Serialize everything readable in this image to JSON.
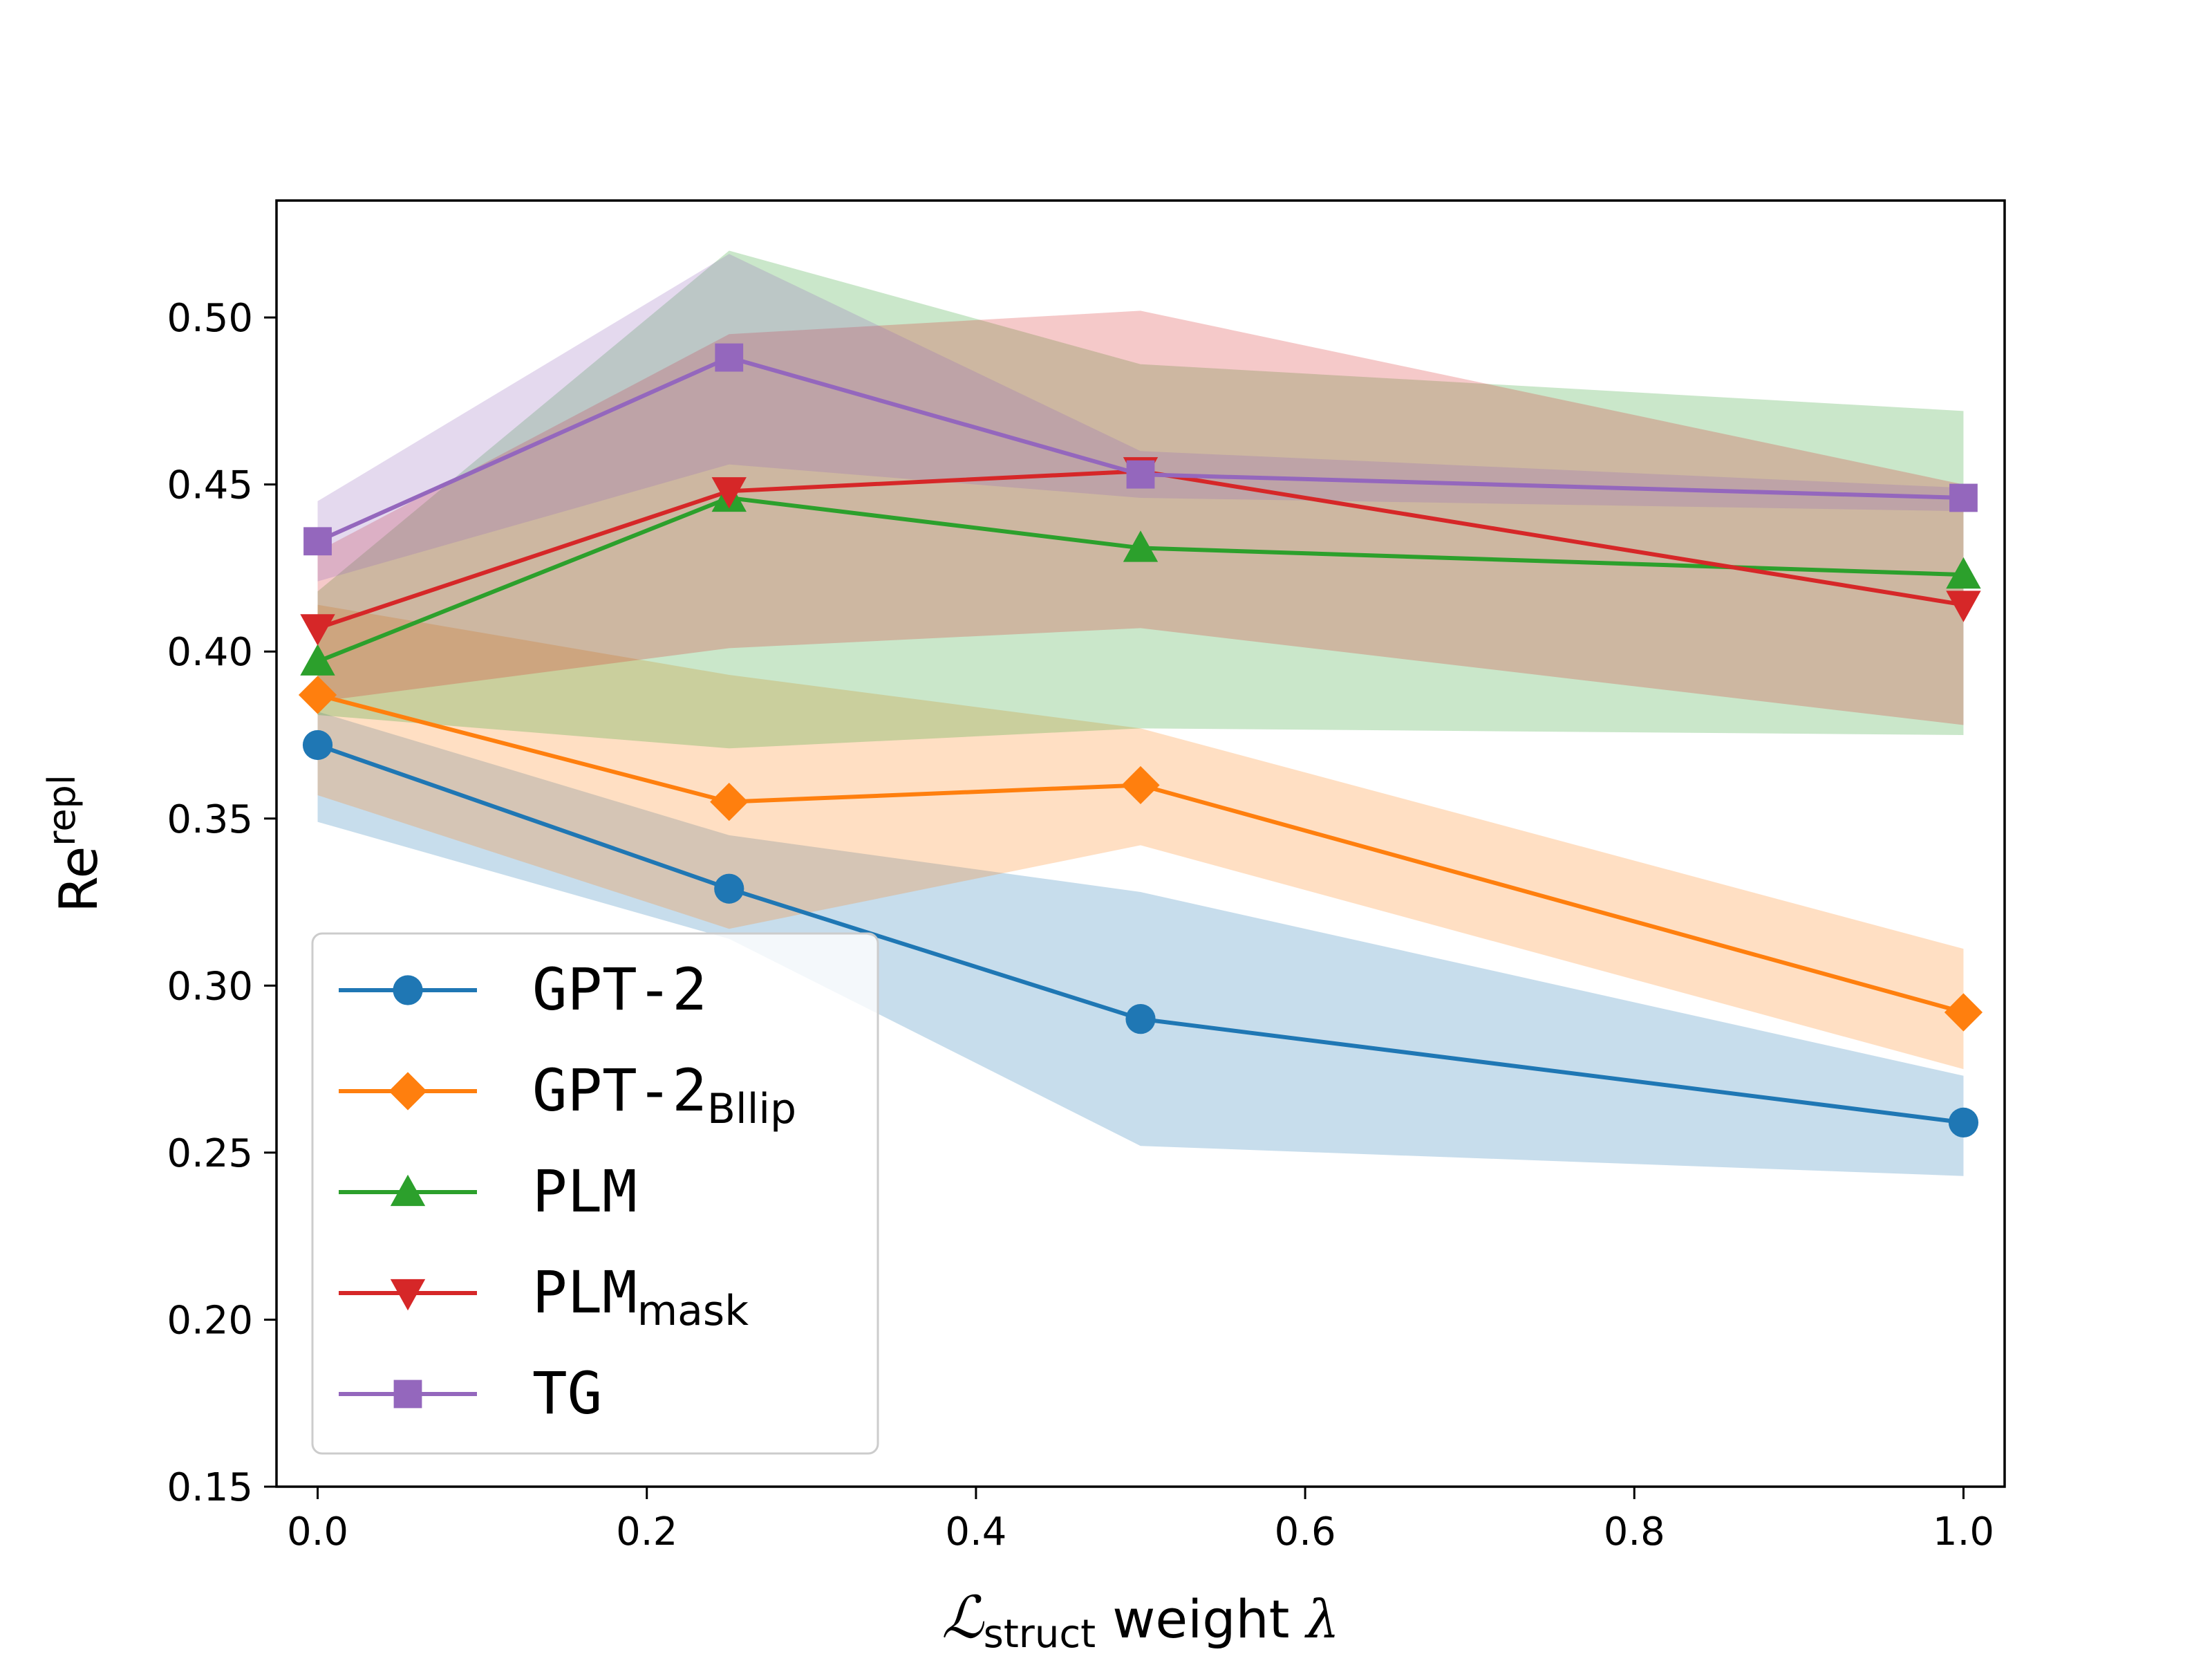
{
  "chart_data": {
    "type": "line",
    "title": "",
    "xlabel": {
      "symbol": "ℒ",
      "subscript": "struct",
      "text": " weight ",
      "lambda": "λ"
    },
    "ylabel": {
      "base": "Re",
      "superscript": "repl"
    },
    "xlim": [
      -0.025,
      1.025
    ],
    "ylim": [
      0.15,
      0.535
    ],
    "xticks": [
      0.0,
      0.2,
      0.4,
      0.6,
      0.8,
      1.0
    ],
    "xtick_labels": [
      "0.0",
      "0.2",
      "0.4",
      "0.6",
      "0.8",
      "1.0"
    ],
    "yticks": [
      0.15,
      0.2,
      0.25,
      0.3,
      0.35,
      0.4,
      0.45,
      0.5
    ],
    "ytick_labels": [
      "0.15",
      "0.20",
      "0.25",
      "0.30",
      "0.35",
      "0.40",
      "0.45",
      "0.50"
    ],
    "grid": false,
    "legend_position": "lower-left",
    "x": [
      0.0,
      0.25,
      0.5,
      1.0
    ],
    "series": [
      {
        "name": "GPT-2",
        "name_sub": "",
        "color": "#1f77b4",
        "marker": "circle",
        "values": [
          0.372,
          0.329,
          0.29,
          0.259
        ],
        "band_upper": [
          0.382,
          0.345,
          0.328,
          0.273
        ],
        "band_lower": [
          0.349,
          0.314,
          0.252,
          0.243
        ]
      },
      {
        "name": "GPT-2",
        "name_sub": "Bllip",
        "color": "#ff7f0e",
        "marker": "diamond",
        "values": [
          0.387,
          0.355,
          0.36,
          0.292
        ],
        "band_upper": [
          0.414,
          0.393,
          0.377,
          0.311
        ],
        "band_lower": [
          0.357,
          0.317,
          0.342,
          0.275
        ]
      },
      {
        "name": "PLM",
        "name_sub": "",
        "color": "#2ca02c",
        "marker": "triangle-up",
        "values": [
          0.397,
          0.446,
          0.431,
          0.423
        ],
        "band_upper": [
          0.418,
          0.52,
          0.486,
          0.472
        ],
        "band_lower": [
          0.381,
          0.371,
          0.377,
          0.375
        ]
      },
      {
        "name": "PLM",
        "name_sub": "mask",
        "color": "#d62728",
        "marker": "triangle-down",
        "values": [
          0.407,
          0.448,
          0.454,
          0.414
        ],
        "band_upper": [
          0.43,
          0.495,
          0.502,
          0.45
        ],
        "band_lower": [
          0.385,
          0.401,
          0.407,
          0.378
        ]
      },
      {
        "name": "TG",
        "name_sub": "",
        "color": "#9467bd",
        "marker": "square",
        "values": [
          0.433,
          0.488,
          0.453,
          0.446
        ],
        "band_upper": [
          0.445,
          0.519,
          0.46,
          0.449
        ],
        "band_lower": [
          0.421,
          0.456,
          0.446,
          0.442
        ]
      }
    ]
  }
}
